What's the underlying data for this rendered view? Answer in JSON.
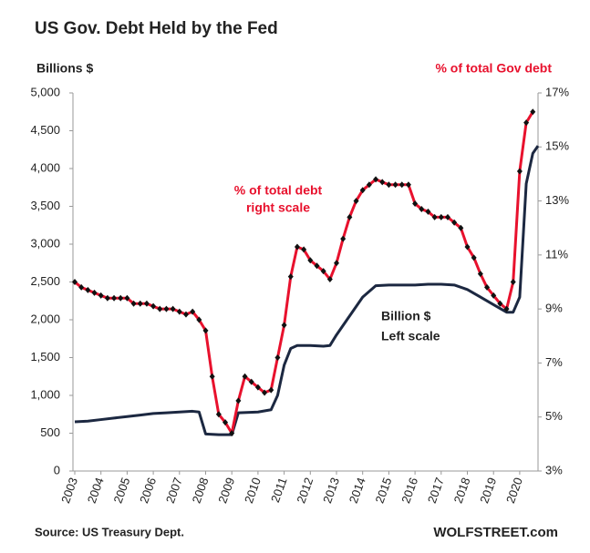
{
  "chart_data": {
    "type": "line",
    "title": "US Gov. Debt Held by the Fed",
    "y_label": "Billions $",
    "y2_label": "% of total Gov debt",
    "annotations": [
      "% of total debt",
      "right scale",
      "Billion $",
      "Left scale"
    ],
    "source": "Source: US Treasury Dept.",
    "credit": "WOLFSTREET.com",
    "xlim": [
      2003,
      2020.7
    ],
    "xticks": [
      2003,
      2004,
      2005,
      2006,
      2007,
      2008,
      2009,
      2010,
      2011,
      2012,
      2013,
      2014,
      2015,
      2016,
      2017,
      2018,
      2019,
      2020
    ],
    "ylim": [
      0,
      5000
    ],
    "yticks": [
      0,
      500,
      {
        "value": 1000,
        "label": "1,000"
      },
      {
        "value": 1500,
        "label": "1,500"
      },
      {
        "value": 2000,
        "label": "2,000"
      },
      {
        "value": 2500,
        "label": "2,500"
      },
      {
        "value": 3000,
        "label": "3,000"
      },
      {
        "value": 3500,
        "label": "3,500"
      },
      {
        "value": 4000,
        "label": "4,000"
      },
      {
        "value": 4500,
        "label": "4,500"
      },
      {
        "value": 5000,
        "label": "5,000"
      }
    ],
    "y2lim": [
      3,
      17
    ],
    "y2ticks": [
      {
        "value": 3,
        "label": "3%"
      },
      {
        "value": 5,
        "label": "5%"
      },
      {
        "value": 7,
        "label": "7%"
      },
      {
        "value": 9,
        "label": "9%"
      },
      {
        "value": 11,
        "label": "11%"
      },
      {
        "value": 13,
        "label": "13%"
      },
      {
        "value": 15,
        "label": "15%"
      },
      {
        "value": 17,
        "label": "17%"
      }
    ],
    "series": [
      {
        "name": "Billion $",
        "color": "#1c2841",
        "x": [
          2003,
          2003.5,
          2004,
          2004.5,
          2005,
          2005.5,
          2006,
          2006.5,
          2007,
          2007.5,
          2007.75,
          2008,
          2008.5,
          2009,
          2009.25,
          2010,
          2010.5,
          2010.75,
          2011,
          2011.25,
          2011.5,
          2012,
          2012.5,
          2012.75,
          2013,
          2013.5,
          2014,
          2014.5,
          2015,
          2016,
          2016.5,
          2017,
          2017.5,
          2018,
          2018.5,
          2019,
          2019.5,
          2019.75,
          2020,
          2020.25,
          2020.5,
          2020.7
        ],
        "values": [
          650,
          660,
          680,
          700,
          720,
          740,
          760,
          770,
          780,
          790,
          780,
          490,
          480,
          480,
          770,
          780,
          810,
          1000,
          1400,
          1620,
          1660,
          1660,
          1650,
          1660,
          1800,
          2050,
          2300,
          2450,
          2460,
          2460,
          2470,
          2470,
          2460,
          2400,
          2300,
          2200,
          2100,
          2100,
          2300,
          3800,
          4200,
          4300
        ]
      },
      {
        "name": "% of total debt",
        "color": "#e8112d",
        "axis": "y2",
        "x": [
          2003,
          2003.25,
          2003.5,
          2003.75,
          2004,
          2004.25,
          2004.5,
          2004.75,
          2005,
          2005.25,
          2005.5,
          2005.75,
          2006,
          2006.25,
          2006.5,
          2006.75,
          2007,
          2007.25,
          2007.5,
          2007.75,
          2008,
          2008.25,
          2008.5,
          2008.75,
          2009,
          2009.25,
          2009.5,
          2009.75,
          2010,
          2010.25,
          2010.5,
          2010.75,
          2011,
          2011.25,
          2011.5,
          2011.75,
          2012,
          2012.25,
          2012.5,
          2012.75,
          2013,
          2013.25,
          2013.5,
          2013.75,
          2014,
          2014.25,
          2014.5,
          2014.75,
          2015,
          2015.25,
          2015.5,
          2015.75,
          2016,
          2016.25,
          2016.5,
          2016.75,
          2017,
          2017.25,
          2017.5,
          2017.75,
          2018,
          2018.25,
          2018.5,
          2018.75,
          2019,
          2019.25,
          2019.5,
          2019.75,
          2020,
          2020.25,
          2020.5
        ],
        "values": [
          10.0,
          9.8,
          9.7,
          9.6,
          9.5,
          9.4,
          9.4,
          9.4,
          9.4,
          9.2,
          9.2,
          9.2,
          9.1,
          9.0,
          9.0,
          9.0,
          8.9,
          8.8,
          8.9,
          8.6,
          8.2,
          6.5,
          5.1,
          4.8,
          4.4,
          5.6,
          6.5,
          6.3,
          6.1,
          5.9,
          6.0,
          7.2,
          8.4,
          10.2,
          11.3,
          11.2,
          10.8,
          10.6,
          10.4,
          10.1,
          10.7,
          11.6,
          12.4,
          13.0,
          13.4,
          13.6,
          13.8,
          13.7,
          13.6,
          13.6,
          13.6,
          13.6,
          12.9,
          12.7,
          12.6,
          12.4,
          12.4,
          12.4,
          12.2,
          12.0,
          11.3,
          10.9,
          10.3,
          9.8,
          9.5,
          9.2,
          9.0,
          10.0,
          14.1,
          15.9,
          16.3
        ]
      }
    ]
  }
}
